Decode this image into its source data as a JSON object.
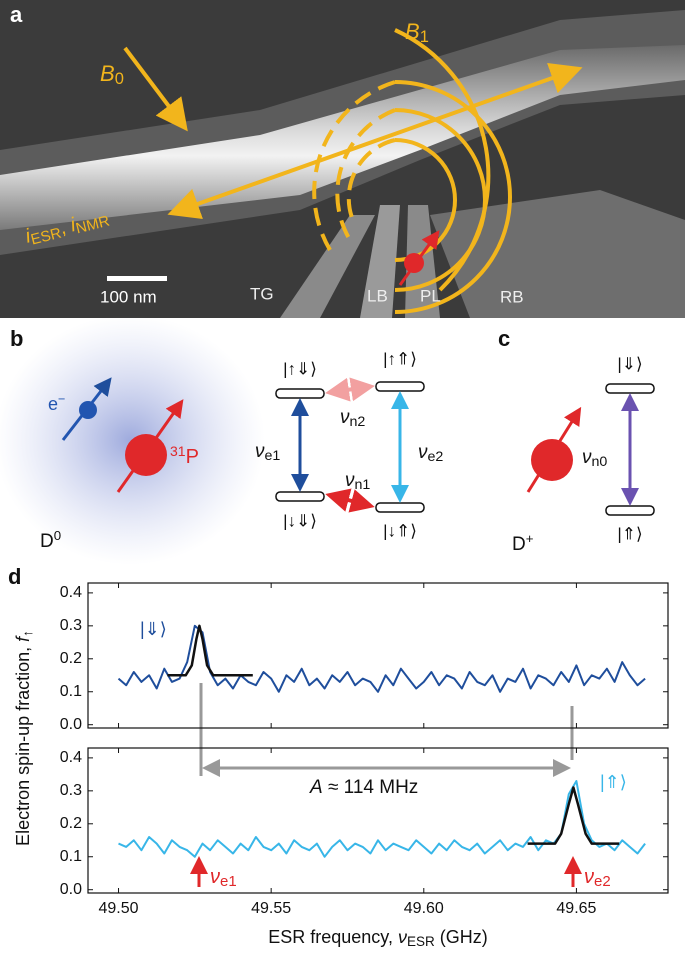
{
  "panel_a": {
    "label": "a",
    "b0": [
      "B",
      "0"
    ],
    "b1": [
      "B",
      "1"
    ],
    "current": [
      "i",
      "ESR",
      ", ",
      "i",
      "NMR"
    ],
    "scale_bar": "100 nm",
    "gates": [
      "TG",
      "LB",
      "PL",
      "RB"
    ]
  },
  "panel_b": {
    "label": "b",
    "electron": [
      "e",
      "−"
    ],
    "nucleus": [
      "31",
      "P"
    ],
    "state": [
      "D",
      "0"
    ],
    "levels": [
      "|↑⇓⟩",
      "|↑⇑⟩",
      "|↓⇓⟩",
      "|↓⇑⟩"
    ],
    "transitions": [
      [
        "ν",
        "e1"
      ],
      [
        "ν",
        "n2"
      ],
      [
        "ν",
        "e2"
      ],
      [
        "ν",
        "n1"
      ]
    ]
  },
  "panel_c": {
    "label": "c",
    "transition": [
      "ν",
      "n0"
    ],
    "levels": [
      "|⇓⟩",
      "|⇑⟩"
    ],
    "state": [
      "D",
      "+"
    ]
  },
  "panel_d": {
    "label": "d",
    "x_label": [
      "ESR frequency, ",
      "ν",
      "ESR",
      " (GHz)"
    ],
    "y_label": [
      "Electron spin-up fraction, ",
      "f",
      "↑"
    ],
    "splitting": [
      "A",
      " ≈ 114 MHz"
    ],
    "markers": [
      [
        "ν",
        "e1"
      ],
      [
        "ν",
        "e2"
      ]
    ]
  },
  "chart_data": [
    {
      "type": "line",
      "x": [
        49.5,
        49.5025,
        49.505,
        49.5075,
        49.51,
        49.5125,
        49.515,
        49.5175,
        49.52,
        49.5225,
        49.525,
        49.5275,
        49.53,
        49.5325,
        49.535,
        49.5375,
        49.54,
        49.5425,
        49.545,
        49.5475,
        49.55,
        49.5525,
        49.555,
        49.5575,
        49.56,
        49.5625,
        49.565,
        49.5675,
        49.57,
        49.5725,
        49.575,
        49.5775,
        49.58,
        49.5825,
        49.585,
        49.5875,
        49.59,
        49.5925,
        49.595,
        49.5975,
        49.6,
        49.6025,
        49.605,
        49.6075,
        49.61,
        49.6125,
        49.615,
        49.6175,
        49.62,
        49.6225,
        49.625,
        49.6275,
        49.63,
        49.6325,
        49.635,
        49.6375,
        49.64,
        49.6425,
        49.645,
        49.6475,
        49.65,
        49.6525,
        49.655,
        49.6575,
        49.66,
        49.6625,
        49.665,
        49.6675,
        49.67,
        49.6725
      ],
      "series": [
        {
          "name": "|⇓⟩",
          "color": "#1f4e9c",
          "values": [
            0.14,
            0.12,
            0.16,
            0.13,
            0.15,
            0.11,
            0.17,
            0.13,
            0.14,
            0.19,
            0.3,
            0.28,
            0.16,
            0.12,
            0.14,
            0.11,
            0.15,
            0.13,
            0.12,
            0.16,
            0.14,
            0.1,
            0.15,
            0.13,
            0.17,
            0.12,
            0.14,
            0.11,
            0.15,
            0.13,
            0.16,
            0.12,
            0.14,
            0.13,
            0.1,
            0.15,
            0.12,
            0.17,
            0.14,
            0.11,
            0.13,
            0.16,
            0.12,
            0.15,
            0.14,
            0.11,
            0.16,
            0.13,
            0.12,
            0.15,
            0.1,
            0.14,
            0.13,
            0.17,
            0.11,
            0.15,
            0.14,
            0.12,
            0.16,
            0.13,
            0.18,
            0.12,
            0.15,
            0.14,
            0.17,
            0.13,
            0.19,
            0.15,
            0.12,
            0.14
          ]
        }
      ],
      "fit": {
        "color": "#111111",
        "x": [
          49.516,
          49.522,
          49.524,
          49.5255,
          49.5265,
          49.5275,
          49.529,
          49.531,
          49.544
        ],
        "values": [
          0.15,
          0.15,
          0.18,
          0.26,
          0.3,
          0.26,
          0.18,
          0.15,
          0.15
        ]
      },
      "xlim": [
        49.49,
        49.68
      ],
      "ylim": [
        -0.01,
        0.43
      ],
      "xticks": [
        49.5,
        49.55,
        49.6,
        49.65
      ],
      "yticks": [
        {
          "value": 0,
          "label": "0.0"
        },
        0.1,
        0.2,
        0.3,
        0.4
      ]
    },
    {
      "type": "line",
      "x": [
        49.5,
        49.5025,
        49.505,
        49.5075,
        49.51,
        49.5125,
        49.515,
        49.5175,
        49.52,
        49.5225,
        49.525,
        49.5275,
        49.53,
        49.5325,
        49.535,
        49.5375,
        49.54,
        49.5425,
        49.545,
        49.5475,
        49.55,
        49.5525,
        49.555,
        49.5575,
        49.56,
        49.5625,
        49.565,
        49.5675,
        49.57,
        49.5725,
        49.575,
        49.5775,
        49.58,
        49.5825,
        49.585,
        49.5875,
        49.59,
        49.5925,
        49.595,
        49.5975,
        49.6,
        49.6025,
        49.605,
        49.6075,
        49.61,
        49.6125,
        49.615,
        49.6175,
        49.62,
        49.6225,
        49.625,
        49.6275,
        49.63,
        49.6325,
        49.635,
        49.6375,
        49.64,
        49.6425,
        49.645,
        49.6475,
        49.65,
        49.6525,
        49.655,
        49.6575,
        49.66,
        49.6625,
        49.665,
        49.6675,
        49.67,
        49.6725
      ],
      "series": [
        {
          "name": "|⇑⟩",
          "color": "#38b6e8",
          "values": [
            0.14,
            0.13,
            0.15,
            0.12,
            0.16,
            0.14,
            0.11,
            0.15,
            0.13,
            0.12,
            0.1,
            0.14,
            0.12,
            0.15,
            0.13,
            0.11,
            0.14,
            0.12,
            0.16,
            0.13,
            0.12,
            0.14,
            0.11,
            0.15,
            0.13,
            0.12,
            0.14,
            0.1,
            0.13,
            0.15,
            0.12,
            0.14,
            0.13,
            0.11,
            0.15,
            0.12,
            0.14,
            0.13,
            0.12,
            0.15,
            0.13,
            0.11,
            0.14,
            0.12,
            0.15,
            0.13,
            0.12,
            0.14,
            0.11,
            0.13,
            0.15,
            0.12,
            0.14,
            0.13,
            0.16,
            0.12,
            0.15,
            0.14,
            0.17,
            0.29,
            0.33,
            0.2,
            0.15,
            0.13,
            0.14,
            0.12,
            0.15,
            0.13,
            0.11,
            0.14
          ]
        }
      ],
      "fit": {
        "color": "#111111",
        "x": [
          49.634,
          49.643,
          49.645,
          49.6475,
          49.649,
          49.6505,
          49.653,
          49.655,
          49.664
        ],
        "values": [
          0.14,
          0.14,
          0.17,
          0.26,
          0.31,
          0.26,
          0.17,
          0.14,
          0.14
        ]
      },
      "xlim": [
        49.49,
        49.68
      ],
      "ylim": [
        -0.01,
        0.43
      ],
      "xticks": [
        {
          "value": 49.5,
          "label": "49.50"
        },
        {
          "value": 49.55,
          "label": "49.55"
        },
        {
          "value": 49.6,
          "label": "49.60"
        },
        {
          "value": 49.65,
          "label": "49.65"
        }
      ],
      "yticks": [
        {
          "value": 0,
          "label": "0.0"
        },
        0.1,
        0.2,
        0.3,
        0.4
      ]
    }
  ]
}
